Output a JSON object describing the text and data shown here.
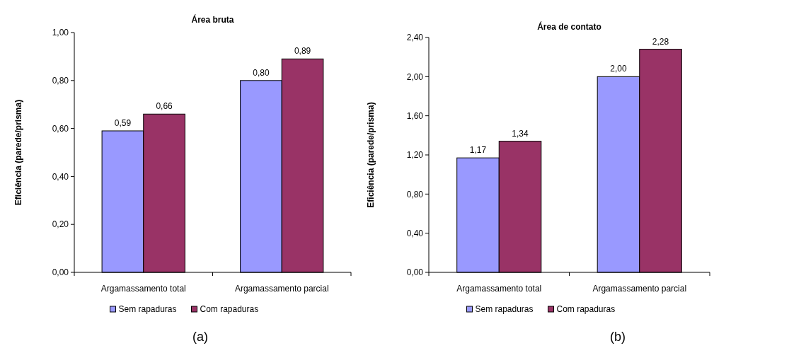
{
  "chart_data": [
    {
      "type": "bar",
      "title": "Área bruta",
      "ylabel": "Eficiência (parede/prisma)",
      "categories": [
        "Argamassamento total",
        "Argamassamento parcial"
      ],
      "series": [
        {
          "name": "Sem rapaduras",
          "color": "#9999ff",
          "values": [
            0.59,
            0.8
          ],
          "value_labels": [
            "0,59",
            "0,80"
          ]
        },
        {
          "name": "Com rapaduras",
          "color": "#993366",
          "values": [
            0.66,
            0.89
          ],
          "value_labels": [
            "0,66",
            "0,89"
          ]
        }
      ],
      "ylim": [
        0,
        1
      ],
      "yticks": [
        {
          "value": 0,
          "label": "0,00"
        },
        {
          "value": 0.2,
          "label": "0,20"
        },
        {
          "value": 0.4,
          "label": "0,40"
        },
        {
          "value": 0.6,
          "label": "0,60"
        },
        {
          "value": 0.8,
          "label": "0,80"
        },
        {
          "value": 1,
          "label": "1,00"
        }
      ],
      "legend": "bottom",
      "annotations": [
        "(a)"
      ]
    },
    {
      "type": "bar",
      "title": "Área de contato",
      "ylabel": "Eficiência (parede/prisma)",
      "categories": [
        "Argamassamento total",
        "Argamassamento parcial"
      ],
      "series": [
        {
          "name": "Sem rapaduras",
          "color": "#9999ff",
          "values": [
            1.17,
            2.0
          ],
          "value_labels": [
            "1,17",
            "2,00"
          ]
        },
        {
          "name": "Com rapaduras",
          "color": "#993366",
          "values": [
            1.34,
            2.28
          ],
          "value_labels": [
            "1,34",
            "2,28"
          ]
        }
      ],
      "ylim": [
        0,
        2.4
      ],
      "yticks": [
        {
          "value": 0,
          "label": "0,00"
        },
        {
          "value": 0.4,
          "label": "0,40"
        },
        {
          "value": 0.8,
          "label": "0,80"
        },
        {
          "value": 1.2,
          "label": "1,20"
        },
        {
          "value": 1.6,
          "label": "1,60"
        },
        {
          "value": 2,
          "label": "2,00"
        },
        {
          "value": 2.4,
          "label": "2,40"
        }
      ],
      "legend": "bottom",
      "annotations": [
        "(b)"
      ]
    }
  ]
}
